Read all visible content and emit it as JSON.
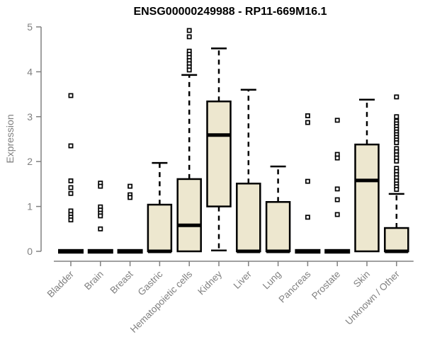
{
  "chart_data": {
    "type": "boxplot",
    "title": "ENSG00000249988 - RP11-669M16.1",
    "ylabel": "Expression",
    "xlabel": "",
    "ylim": [
      0,
      5
    ],
    "yticks": [
      0,
      1,
      2,
      3,
      4,
      5
    ],
    "grid": false,
    "legend": "none",
    "categories": [
      "Bladder",
      "Brain",
      "Breast",
      "Gastric",
      "Hematopoietic cells",
      "Kidney",
      "Liver",
      "Lung",
      "Pancreas",
      "Prostate",
      "Skin",
      "Unknown / Other"
    ],
    "boxes": [
      {
        "category": "Bladder",
        "whisker_low": 0,
        "q1": 0,
        "median": 0,
        "q3": 0,
        "whisker_high": 0,
        "outliers": [
          3.47,
          2.35,
          1.57,
          1.42,
          1.29,
          0.9,
          0.82,
          0.76,
          0.7
        ]
      },
      {
        "category": "Brain",
        "whisker_low": 0,
        "q1": 0,
        "median": 0,
        "q3": 0,
        "whisker_high": 0,
        "outliers": [
          1.52,
          1.45,
          0.99,
          0.92,
          0.85,
          0.79,
          0.5
        ]
      },
      {
        "category": "Breast",
        "whisker_low": 0,
        "q1": 0,
        "median": 0,
        "q3": 0,
        "whisker_high": 0,
        "outliers": [
          1.45,
          1.26,
          1.2
        ]
      },
      {
        "category": "Gastric",
        "whisker_low": 0,
        "q1": 0,
        "median": 0,
        "q3": 1.04,
        "whisker_high": 1.97,
        "outliers": []
      },
      {
        "category": "Hematopoietic cells",
        "whisker_low": 0,
        "q1": 0,
        "median": 0.58,
        "q3": 1.61,
        "whisker_high": 3.93,
        "outliers": [
          4.92,
          4.78,
          4.46,
          4.39,
          4.32,
          4.25,
          4.18,
          4.11,
          4.04
        ]
      },
      {
        "category": "Kidney",
        "whisker_low": 0.02,
        "q1": 1.0,
        "median": 2.59,
        "q3": 3.34,
        "whisker_high": 4.52,
        "outliers": []
      },
      {
        "category": "Liver",
        "whisker_low": 0,
        "q1": 0,
        "median": 0,
        "q3": 1.51,
        "whisker_high": 3.6,
        "outliers": []
      },
      {
        "category": "Lung",
        "whisker_low": 0,
        "q1": 0,
        "median": 0,
        "q3": 1.1,
        "whisker_high": 1.89,
        "outliers": []
      },
      {
        "category": "Pancreas",
        "whisker_low": 0,
        "q1": 0,
        "median": 0,
        "q3": 0,
        "whisker_high": 0,
        "outliers": [
          3.02,
          2.87,
          1.56,
          0.76
        ]
      },
      {
        "category": "Prostate",
        "whisker_low": 0,
        "q1": 0,
        "median": 0,
        "q3": 0,
        "whisker_high": 0,
        "outliers": [
          2.92,
          2.16,
          2.08,
          1.39,
          1.15,
          0.82
        ]
      },
      {
        "category": "Skin",
        "whisker_low": 0,
        "q1": 0,
        "median": 1.58,
        "q3": 2.38,
        "whisker_high": 3.38,
        "outliers": []
      },
      {
        "category": "Unknown / Other",
        "whisker_low": 0,
        "q1": 0,
        "median": 0,
        "q3": 0.52,
        "whisker_high": 1.28,
        "outliers": [
          3.44,
          3.0,
          2.9,
          2.84,
          2.78,
          2.72,
          2.66,
          2.6,
          2.54,
          2.48,
          2.42,
          2.29,
          2.22,
          2.15,
          2.08,
          2.01,
          1.85,
          1.78,
          1.71,
          1.64,
          1.57,
          1.5,
          1.44,
          1.38
        ]
      }
    ],
    "colors": {
      "box_fill": "#EDE7CF",
      "box_border": "#000000",
      "median": "#000000",
      "whisker": "#000000",
      "outlier_border": "#000000",
      "outlier_fill": "#FFFFFF",
      "axis": "#808080",
      "tick_label": "#808080",
      "title": "#000000"
    }
  }
}
